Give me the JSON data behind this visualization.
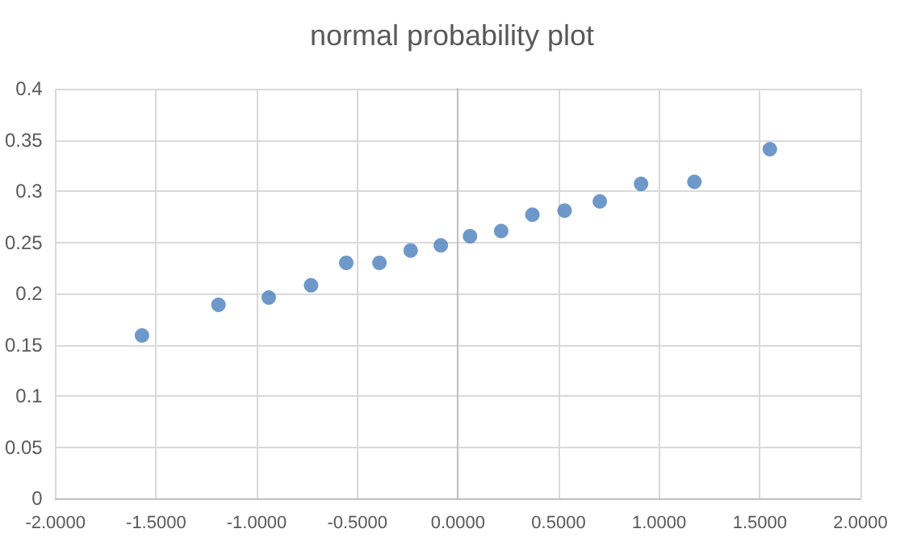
{
  "chart_data": {
    "type": "scatter",
    "title": "normal probability plot",
    "x": [
      -1.57,
      -1.19,
      -0.94,
      -0.73,
      -0.555,
      -0.39,
      -0.235,
      -0.085,
      0.06,
      0.215,
      0.37,
      0.53,
      0.705,
      0.91,
      1.175,
      1.55
    ],
    "values": [
      0.159,
      0.189,
      0.196,
      0.208,
      0.23,
      0.23,
      0.242,
      0.247,
      0.256,
      0.261,
      0.277,
      0.281,
      0.29,
      0.307,
      0.309,
      0.341
    ],
    "color": "#4a7ebb",
    "xlim": [
      -2,
      2
    ],
    "xticks": [
      {
        "value": -2,
        "label": "-2.0000"
      },
      {
        "value": -1.5,
        "label": "-1.5000"
      },
      {
        "value": -1,
        "label": "-1.0000"
      },
      {
        "value": -0.5,
        "label": "-0.5000"
      },
      {
        "value": 0,
        "label": "0.0000"
      },
      {
        "value": 0.5,
        "label": "0.5000"
      },
      {
        "value": 1,
        "label": "1.0000"
      },
      {
        "value": 1.5,
        "label": "1.5000"
      },
      {
        "value": 2,
        "label": "2.0000"
      }
    ],
    "ylim": [
      0,
      0.4
    ],
    "yticks": [
      0,
      0.05,
      0.1,
      0.15,
      0.2,
      0.25,
      0.3,
      0.35,
      0.4
    ],
    "grid": true,
    "marker": "circle"
  }
}
